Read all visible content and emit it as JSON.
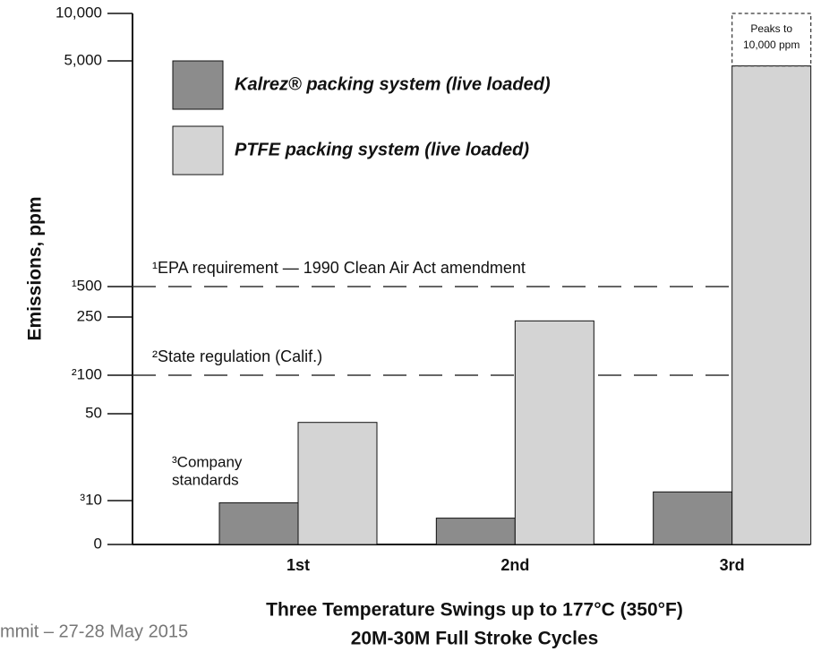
{
  "chart_data": {
    "type": "bar",
    "y_label": "Emissions, ppm",
    "x_label": [
      "Three Temperature Swings up to 177°C (350°F)",
      "20M-30M Full Stroke Cycles"
    ],
    "categories": [
      "1st",
      "2nd",
      "3rd"
    ],
    "series": [
      {
        "name": "Kalrez® packing system (live loaded)",
        "color": "#8c8c8c",
        "values": [
          9.5,
          6,
          14
        ]
      },
      {
        "name": "PTFE packing system (live loaded)",
        "color": "#d4d4d4",
        "values": [
          46,
          240,
          4900
        ]
      }
    ],
    "ylim": [
      0,
      10000
    ],
    "yticks": [
      0,
      {
        "value": 10,
        "label": "³10"
      },
      50,
      {
        "value": 100,
        "label": "²100"
      },
      250,
      {
        "value": 500,
        "label": "¹500"
      },
      {
        "value": 5000,
        "label": "5,000"
      },
      {
        "value": 10000,
        "label": "10,000"
      }
    ],
    "reference_lines": [
      {
        "value": 500,
        "label": "¹EPA requirement — 1990 Clean Air Act amendment"
      },
      {
        "value": 100,
        "label": "²State regulation (Calif.)"
      }
    ],
    "company_note": [
      "³Company",
      "standards"
    ],
    "peak_annotation": {
      "value": 10000,
      "lines": [
        "Peaks to",
        "10,000 ppm"
      ]
    },
    "footer": "mmit – 27-28 May 2015"
  }
}
